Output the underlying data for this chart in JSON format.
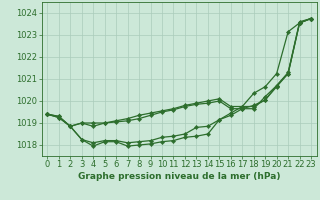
{
  "xlabel": "Graphe pression niveau de la mer (hPa)",
  "ylim": [
    1017.5,
    1024.5
  ],
  "xlim": [
    -0.5,
    23.5
  ],
  "yticks": [
    1018,
    1019,
    1020,
    1021,
    1022,
    1023,
    1024
  ],
  "xticks": [
    0,
    1,
    2,
    3,
    4,
    5,
    6,
    7,
    8,
    9,
    10,
    11,
    12,
    13,
    14,
    15,
    16,
    17,
    18,
    19,
    20,
    21,
    22,
    23
  ],
  "bg_color": "#cce8d8",
  "grid_color": "#aaccbb",
  "line_color": "#2d6e2d",
  "line1_y": [
    1019.4,
    1019.3,
    1018.85,
    1019.0,
    1019.0,
    1019.0,
    1019.05,
    1019.1,
    1019.2,
    1019.35,
    1019.5,
    1019.6,
    1019.75,
    1019.85,
    1019.9,
    1020.0,
    1019.65,
    1019.65,
    1019.8,
    1020.05,
    1020.65,
    1021.25,
    1023.55,
    1023.75
  ],
  "line2_y": [
    1019.4,
    1019.3,
    1018.85,
    1019.0,
    1018.85,
    1019.0,
    1019.1,
    1019.2,
    1019.35,
    1019.45,
    1019.55,
    1019.65,
    1019.8,
    1019.9,
    1020.0,
    1020.1,
    1019.75,
    1019.75,
    1019.75,
    1020.05,
    1020.7,
    1021.3,
    1023.6,
    1023.75
  ],
  "line3_y": [
    1019.4,
    1019.25,
    1018.85,
    1018.25,
    1018.1,
    1018.2,
    1018.2,
    1018.1,
    1018.15,
    1018.2,
    1018.35,
    1018.4,
    1018.5,
    1018.8,
    1018.85,
    1019.15,
    1019.35,
    1019.65,
    1019.65,
    1020.2,
    1020.7,
    1021.25,
    1023.55,
    1023.75
  ],
  "line4_y": [
    1019.4,
    1019.25,
    1018.85,
    1018.25,
    1017.95,
    1018.15,
    1018.15,
    1017.95,
    1018.0,
    1018.05,
    1018.15,
    1018.2,
    1018.35,
    1018.4,
    1018.5,
    1019.15,
    1019.45,
    1019.75,
    1020.35,
    1020.65,
    1021.25,
    1023.15,
    1023.55,
    1023.75
  ],
  "marker_size": 2.2,
  "linewidth": 0.9,
  "tick_fontsize": 6,
  "xlabel_fontsize": 6.5
}
